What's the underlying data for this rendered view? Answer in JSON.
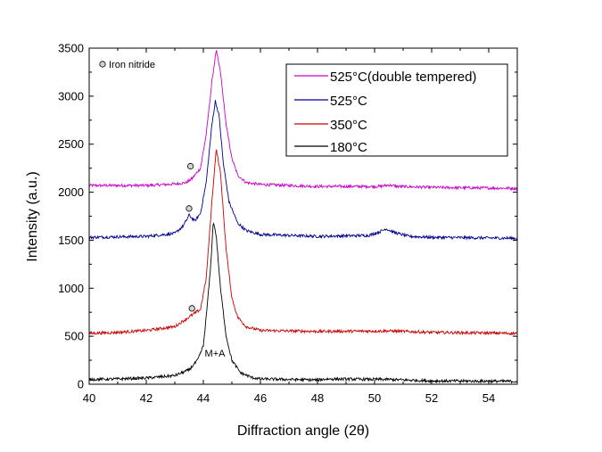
{
  "chart_data": {
    "type": "line",
    "title": "",
    "xlabel": "Diffraction angle (2θ)",
    "ylabel": "Intensity (a.u.)",
    "xlim": [
      40,
      55
    ],
    "ylim": [
      0,
      3500
    ],
    "x_ticks": [
      40,
      42,
      44,
      46,
      48,
      50,
      52,
      54
    ],
    "y_ticks": [
      0,
      500,
      1000,
      1500,
      2000,
      2500,
      3000,
      3500
    ],
    "grid": false,
    "legend_position": "top-right",
    "series": [
      {
        "name": "525°C(double tempered)",
        "color": "#cc00cc",
        "points": [
          [
            40,
            2070
          ],
          [
            42,
            2070
          ],
          [
            43,
            2085
          ],
          [
            43.4,
            2100
          ],
          [
            43.6,
            2140
          ],
          [
            43.9,
            2250
          ],
          [
            44.1,
            2600
          ],
          [
            44.3,
            3150
          ],
          [
            44.45,
            3480
          ],
          [
            44.6,
            3250
          ],
          [
            44.8,
            2700
          ],
          [
            45.0,
            2350
          ],
          [
            45.2,
            2180
          ],
          [
            45.5,
            2100
          ],
          [
            46,
            2080
          ],
          [
            48,
            2060
          ],
          [
            50.2,
            2060
          ],
          [
            50.5,
            2075
          ],
          [
            50.8,
            2060
          ],
          [
            52,
            2050
          ],
          [
            55,
            2040
          ]
        ]
      },
      {
        "name": "525°C",
        "color": "#00008b",
        "points": [
          [
            40,
            1530
          ],
          [
            42,
            1540
          ],
          [
            43,
            1570
          ],
          [
            43.3,
            1650
          ],
          [
            43.5,
            1760
          ],
          [
            43.7,
            1700
          ],
          [
            43.9,
            1780
          ],
          [
            44.1,
            2100
          ],
          [
            44.3,
            2700
          ],
          [
            44.42,
            2950
          ],
          [
            44.55,
            2800
          ],
          [
            44.7,
            2300
          ],
          [
            44.9,
            1900
          ],
          [
            45.2,
            1680
          ],
          [
            45.5,
            1600
          ],
          [
            46,
            1560
          ],
          [
            48,
            1540
          ],
          [
            49.8,
            1550
          ],
          [
            50.2,
            1590
          ],
          [
            50.4,
            1620
          ],
          [
            50.7,
            1580
          ],
          [
            51.2,
            1540
          ],
          [
            52,
            1530
          ],
          [
            55,
            1520
          ]
        ]
      },
      {
        "name": "350°C",
        "color": "#cc0000",
        "points": [
          [
            40,
            530
          ],
          [
            41,
            540
          ],
          [
            42,
            560
          ],
          [
            43,
            600
          ],
          [
            43.4,
            680
          ],
          [
            43.6,
            720
          ],
          [
            43.9,
            780
          ],
          [
            44.1,
            1100
          ],
          [
            44.3,
            1900
          ],
          [
            44.45,
            2450
          ],
          [
            44.6,
            2200
          ],
          [
            44.8,
            1400
          ],
          [
            45.0,
            900
          ],
          [
            45.2,
            700
          ],
          [
            45.5,
            600
          ],
          [
            46,
            560
          ],
          [
            48,
            550
          ],
          [
            50.5,
            555
          ],
          [
            52,
            540
          ],
          [
            55,
            530
          ]
        ]
      },
      {
        "name": "180°C",
        "color": "#000000",
        "points": [
          [
            40,
            50
          ],
          [
            41,
            55
          ],
          [
            42,
            65
          ],
          [
            43,
            90
          ],
          [
            43.5,
            150
          ],
          [
            43.8,
            250
          ],
          [
            44.0,
            400
          ],
          [
            44.1,
            700
          ],
          [
            44.25,
            1200
          ],
          [
            44.35,
            1700
          ],
          [
            44.45,
            1550
          ],
          [
            44.6,
            1000
          ],
          [
            44.8,
            500
          ],
          [
            45.0,
            250
          ],
          [
            45.3,
            120
          ],
          [
            45.7,
            70
          ],
          [
            46,
            55
          ],
          [
            48,
            45
          ],
          [
            48.3,
            55
          ],
          [
            50.5,
            50
          ],
          [
            52,
            35
          ],
          [
            55,
            30
          ]
        ]
      }
    ],
    "markers": [
      {
        "x": 43.55,
        "y": 2270,
        "label": ""
      },
      {
        "x": 43.5,
        "y": 1830,
        "label": ""
      },
      {
        "x": 43.6,
        "y": 790,
        "label": ""
      }
    ],
    "marker_legend": "Iron nitride",
    "annotations": [
      {
        "text": "M+A",
        "x": 44.35,
        "y": 310
      }
    ]
  }
}
